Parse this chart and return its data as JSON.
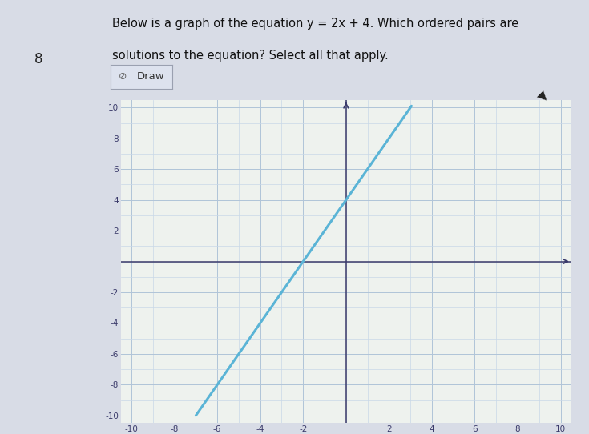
{
  "title_line1": "Below is a graph of the equation y = 2x + 4. Which ordered pairs are",
  "title_line2": "solutions to the equation? Select all that apply.",
  "question_number": "8",
  "draw_label": "Draw",
  "equation_slope": 2,
  "equation_intercept": 4,
  "x_range": [
    -10,
    10
  ],
  "y_range": [
    -10,
    10
  ],
  "x_ticks": [
    -10,
    -8,
    -6,
    -4,
    -2,
    2,
    4,
    6,
    8,
    10
  ],
  "y_ticks": [
    -10,
    -8,
    -6,
    -4,
    -2,
    2,
    4,
    6,
    8,
    10
  ],
  "line_color": "#5ab4d6",
  "line_width": 2.2,
  "grid_color_minor": "#c8d8e8",
  "grid_color_major": "#b0c4d8",
  "axis_color": "#3a3a6a",
  "tick_label_color": "#3a3a6a",
  "graph_bg": "#eef2ee",
  "outer_bg": "#d8dce6",
  "card_bg": "#f4f4f6",
  "line_x_start": -7.0,
  "line_x_end": 3.05,
  "tick_fontsize": 7.5
}
